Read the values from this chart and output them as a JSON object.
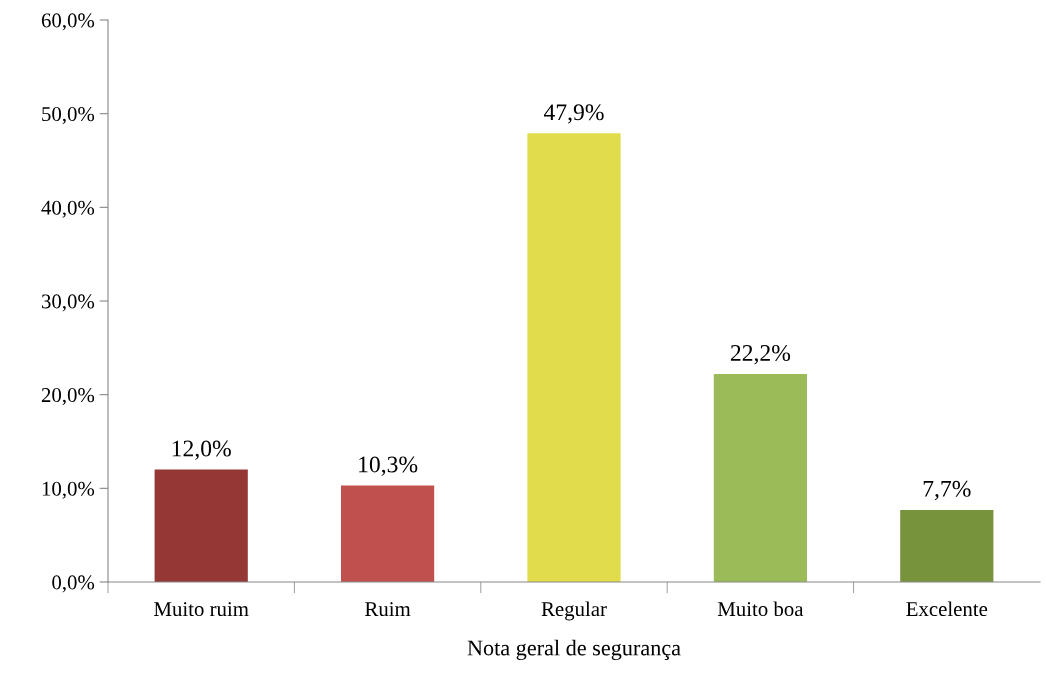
{
  "chart_data": {
    "type": "bar",
    "xlabel": "Nota geral de segurança",
    "categories": [
      "Muito ruim",
      "Ruim",
      "Regular",
      "Muito boa",
      "Excelente"
    ],
    "values": [
      12.0,
      10.3,
      47.9,
      22.2,
      7.7
    ],
    "colors": [
      "#953735",
      "#c0504d",
      "#e0dc4c",
      "#9bbb59",
      "#77933c"
    ],
    "value_labels": [
      "12,0%",
      "10,3%",
      "47,9%",
      "22,2%",
      "7,7%"
    ],
    "ylim": [
      0,
      60
    ],
    "yticks": [
      {
        "value": 0,
        "label": "0,0%"
      },
      {
        "value": 10,
        "label": "10,0%"
      },
      {
        "value": 20,
        "label": "20,0%"
      },
      {
        "value": 30,
        "label": "30,0%"
      },
      {
        "value": 40,
        "label": "40,0%"
      },
      {
        "value": 50,
        "label": "50,0%"
      },
      {
        "value": 60,
        "label": "60,0%"
      }
    ],
    "grid": false,
    "legend": false
  }
}
